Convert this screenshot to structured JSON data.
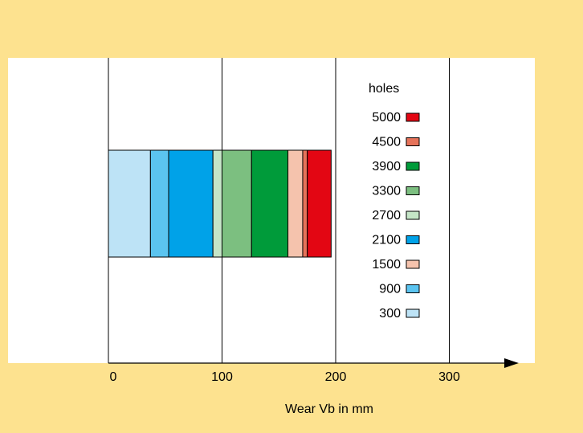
{
  "colors": {
    "background_frame": "#fde28f",
    "plot_area": "#ffffff",
    "lines": "#000000"
  },
  "chart_data": {
    "type": "bar",
    "orientation": "horizontal-stacked",
    "title": "",
    "xlabel": "Wear Vb in mm",
    "ylabel": "",
    "xlim": [
      0,
      350
    ],
    "xticks": [
      0,
      100,
      200,
      300
    ],
    "grid": "vertical lines at 100, 200, 300",
    "legend_title": "holes",
    "legend_position": "top-right",
    "segments": [
      {
        "name": "300",
        "start": 0,
        "end": 37,
        "color": "#bde3f6"
      },
      {
        "name": "900",
        "start": 37,
        "end": 53,
        "color": "#5bc4f0"
      },
      {
        "name": "2100",
        "start": 53,
        "end": 92,
        "color": "#00a2e8"
      },
      {
        "name": "2700",
        "start": 92,
        "end": 100,
        "color": "#c5e5c7"
      },
      {
        "name": "3300",
        "start": 100,
        "end": 126,
        "color": "#7cbf80"
      },
      {
        "name": "3900",
        "start": 126,
        "end": 158,
        "color": "#009b3a"
      },
      {
        "name": "1500",
        "start": 158,
        "end": 171,
        "color": "#f5c3ad"
      },
      {
        "name": "4500",
        "start": 171,
        "end": 175,
        "color": "#e6735a"
      },
      {
        "name": "5000",
        "start": 175,
        "end": 196,
        "color": "#e30613"
      }
    ],
    "legend_order": [
      "5000",
      "4500",
      "3900",
      "3300",
      "2700",
      "2100",
      "1500",
      "900",
      "300"
    ]
  }
}
